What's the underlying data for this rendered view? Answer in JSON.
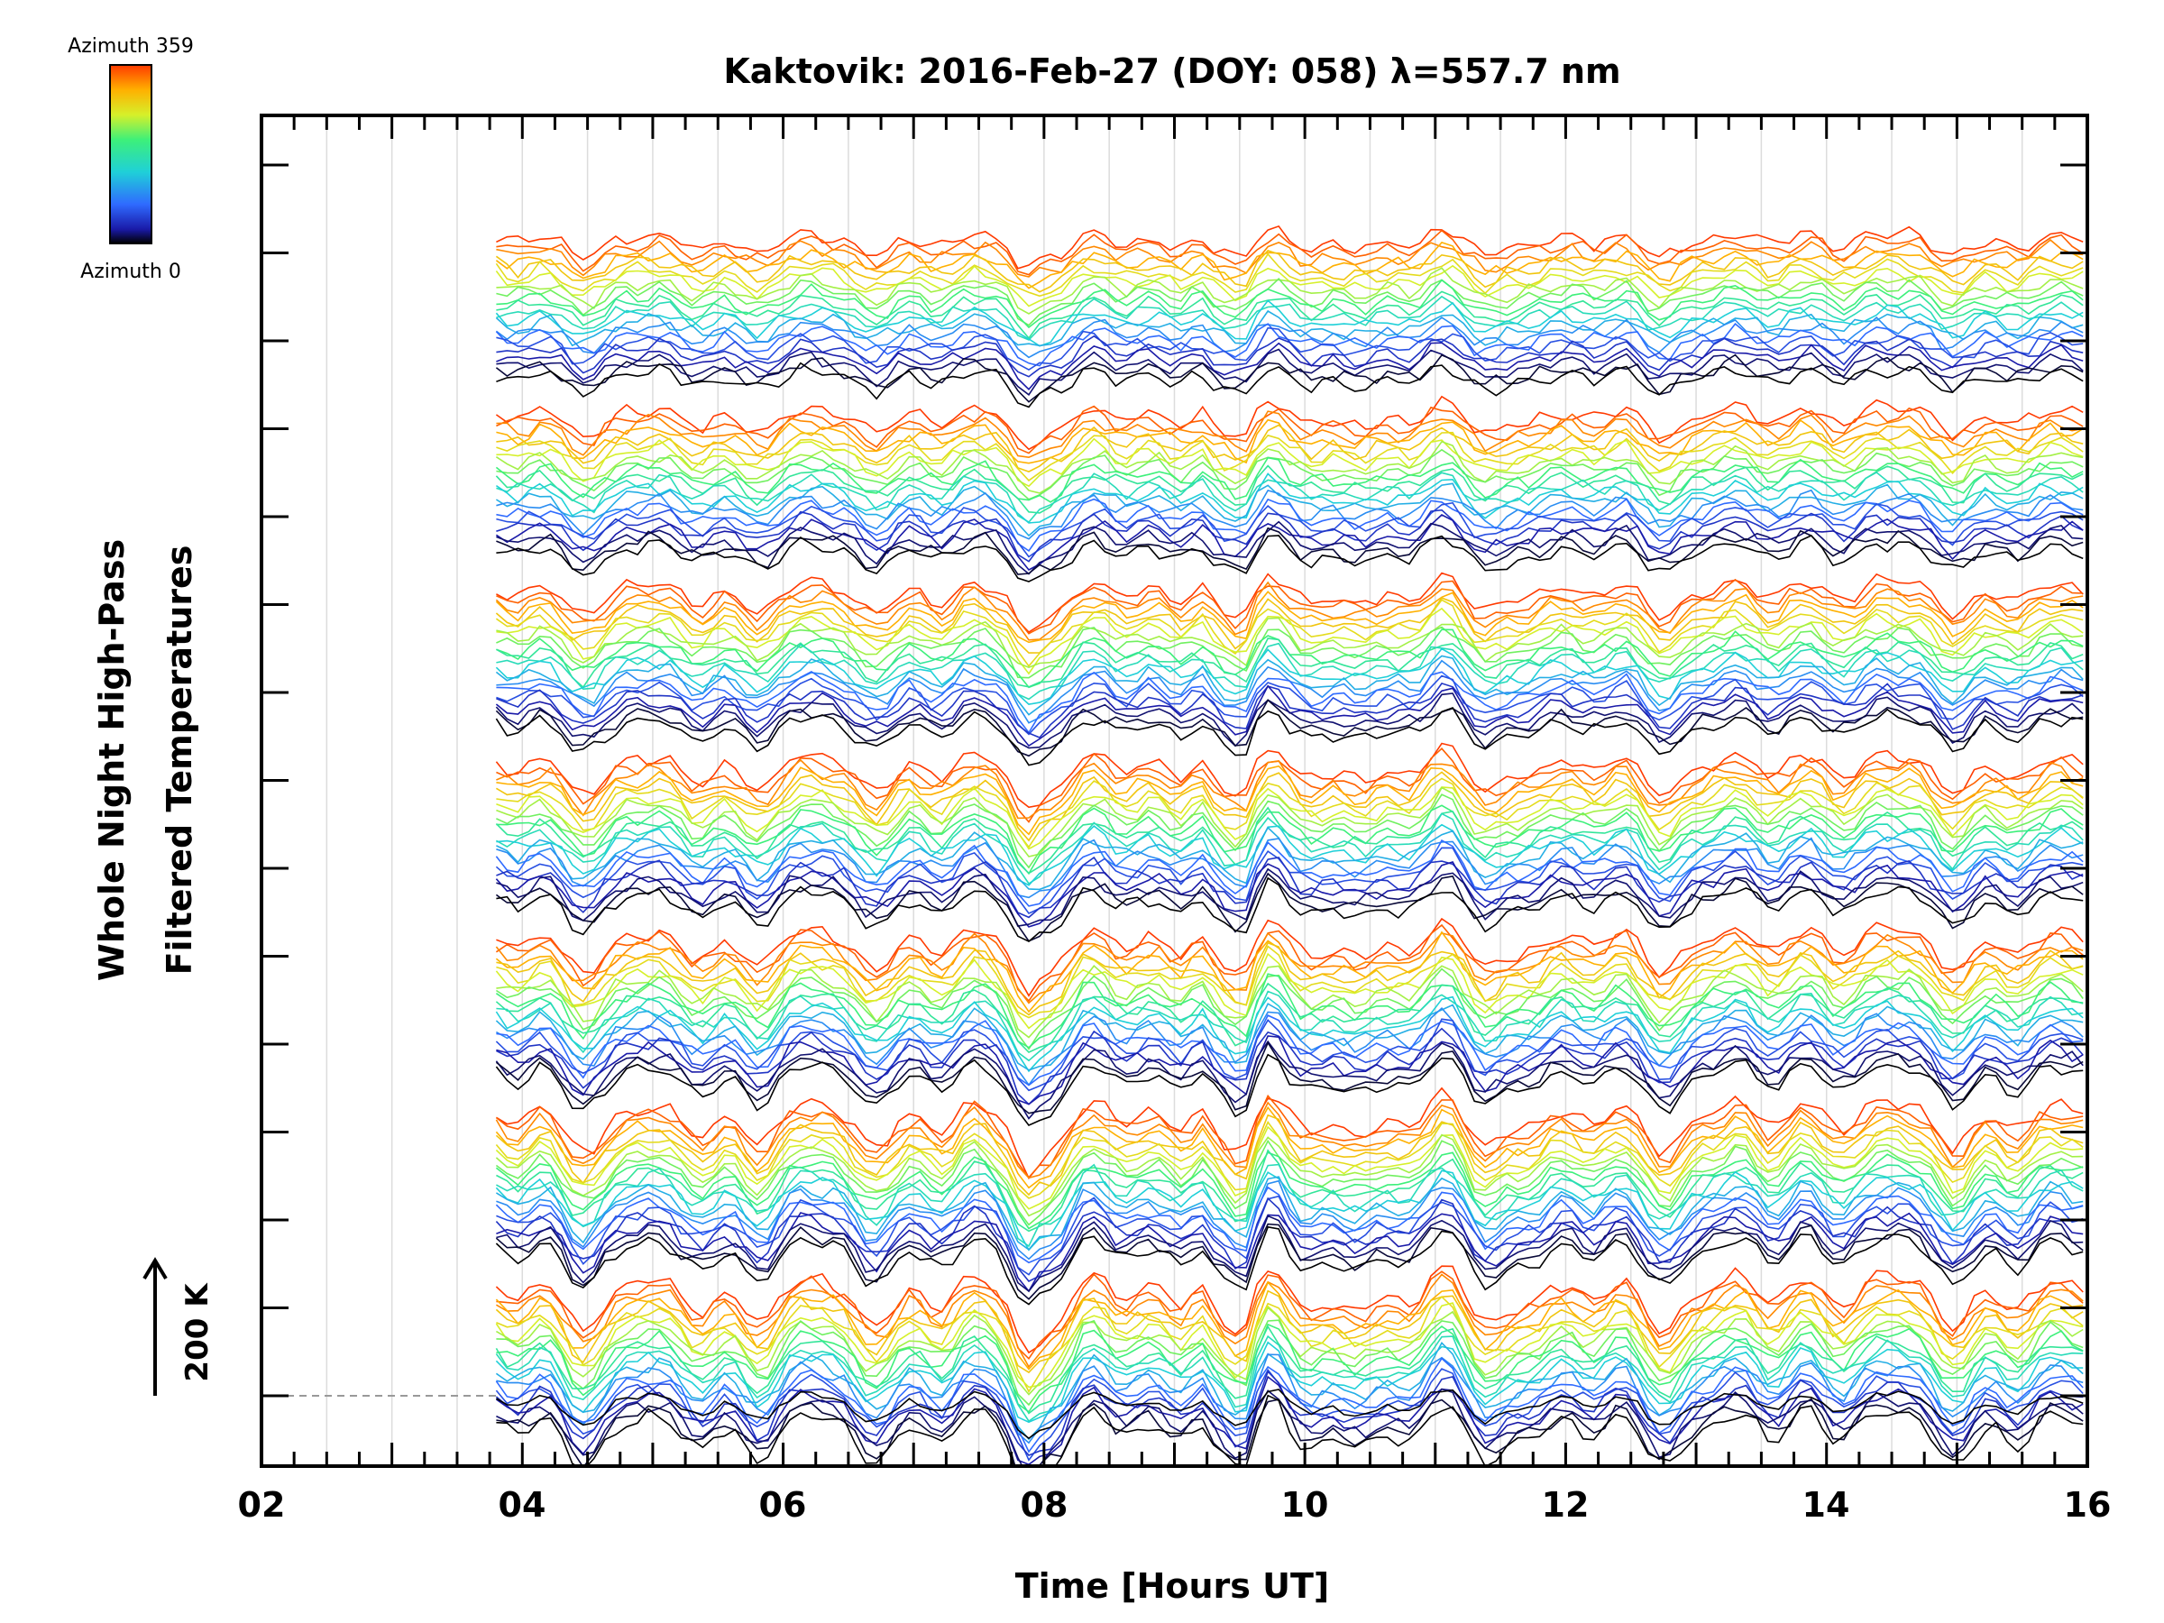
{
  "chart_data": {
    "type": "line",
    "title": "Kaktovik: 2016-Feb-27 (DOY: 058) λ=557.7 nm",
    "xlabel": "Time [Hours UT]",
    "ylabel_line1": "Whole Night High-Pass",
    "ylabel_line2": "Filtered Temperatures",
    "xlim": [
      2,
      16
    ],
    "x_ticks": [
      "02",
      "04",
      "06",
      "08",
      "10",
      "12",
      "14",
      "16"
    ],
    "data_start_hour": 3.8,
    "colorbar": {
      "top_label": "Azimuth 359",
      "bottom_label": "Azimuth 0",
      "colors": [
        "#000000",
        "#1a1aa8",
        "#2f6bff",
        "#1fd0d8",
        "#3df07a",
        "#d6f02a",
        "#ffb000",
        "#ff3a00"
      ]
    },
    "scale_bar": {
      "label": "200 K"
    },
    "series_groups": 7,
    "traces_per_group": 22,
    "grid": true,
    "baseline_dashed": true
  }
}
